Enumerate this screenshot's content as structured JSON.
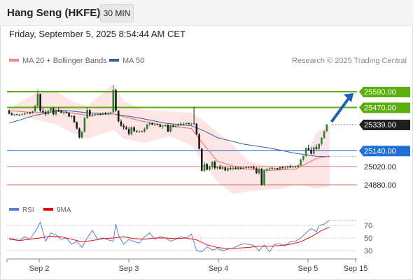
{
  "header": {
    "title": "Hang Seng (HKFE)",
    "timeframe": "30 MIN",
    "datetime": "Friday, September 5, 2025 8:54:44 AM CET"
  },
  "legend": {
    "items": [
      {
        "label": "MA 20 + Bollinger Bands",
        "color": "#f08a8a"
      },
      {
        "label": "MA 50",
        "color": "#2f5f9a"
      }
    ],
    "credit": "Research © 2025 Trading Central"
  },
  "rsi_legend": {
    "items": [
      {
        "label": "RSI",
        "color": "#5b7fd6"
      },
      {
        "label": "9MA",
        "color": "#e01010"
      }
    ]
  },
  "colors": {
    "up": "#2e7d32",
    "down": "#1a1a1a",
    "green_level": "#5cad0e",
    "blue_level": "#1f6fd6",
    "red_level": "#e06a6a",
    "band": "#fde0e0",
    "current": "#1f1f1f",
    "arrow": "#1f5fb4"
  },
  "chart_data": [
    {
      "type": "candlestick",
      "title": "Hang Seng (HKFE)",
      "timeframe": "30 MIN",
      "x_ticks": [
        "Sep 2",
        "Sep 3",
        "Sep 4",
        "Sep 5",
        "Sep 15"
      ],
      "levels": [
        {
          "value": 25590,
          "label": "25590.00",
          "style": "green"
        },
        {
          "value": 25470,
          "label": "25470.00",
          "style": "green"
        },
        {
          "value": 25339,
          "label": "25339.00",
          "style": "current"
        },
        {
          "value": 25140,
          "label": "25140.00",
          "style": "blue"
        },
        {
          "value": 25020,
          "label": "25020.00",
          "style": "red"
        },
        {
          "value": 24880,
          "label": "24880.00",
          "style": "red"
        }
      ],
      "projection": {
        "from": 25339,
        "to": 25590
      },
      "candles": [
        [
          25446,
          25454,
          25416,
          25424
        ],
        [
          25424,
          25432,
          25407,
          25414
        ],
        [
          25414,
          25420,
          25405,
          25417
        ],
        [
          25417,
          25422,
          25410,
          25413
        ],
        [
          25413,
          25421,
          25402,
          25415
        ],
        [
          25415,
          25424,
          25408,
          25418
        ],
        [
          25418,
          25432,
          25411,
          25426
        ],
        [
          25426,
          25436,
          25418,
          25431
        ],
        [
          25431,
          25436,
          25418,
          25430
        ],
        [
          25430,
          25446,
          25423,
          25440
        ],
        [
          25440,
          25490,
          25434,
          25482
        ],
        [
          25482,
          25608,
          25474,
          25573
        ],
        [
          25573,
          25575,
          25434,
          25443
        ],
        [
          25443,
          25463,
          25426,
          25433
        ],
        [
          25433,
          25450,
          25404,
          25419
        ],
        [
          25419,
          25452,
          25412,
          25444
        ],
        [
          25444,
          25470,
          25431,
          25463
        ],
        [
          25463,
          25474,
          25409,
          25418
        ],
        [
          25418,
          25458,
          25406,
          25450
        ],
        [
          25450,
          25467,
          25436,
          25442
        ],
        [
          25442,
          25452,
          25426,
          25429
        ],
        [
          25429,
          25438,
          25414,
          25433
        ],
        [
          25433,
          25442,
          25424,
          25427
        ],
        [
          25427,
          25434,
          25397,
          25401
        ],
        [
          25401,
          25412,
          25387,
          25405
        ],
        [
          25405,
          25411,
          25352,
          25357
        ],
        [
          25357,
          25363,
          25303,
          25309
        ],
        [
          25309,
          25316,
          25234,
          25240
        ],
        [
          25240,
          25291,
          25231,
          25285
        ],
        [
          25285,
          25398,
          25279,
          25390
        ],
        [
          25390,
          25472,
          25382,
          25451
        ],
        [
          25451,
          25455,
          25397,
          25409
        ],
        [
          25409,
          25424,
          25400,
          25411
        ],
        [
          25411,
          25426,
          25406,
          25418
        ],
        [
          25418,
          25427,
          25413,
          25420
        ],
        [
          25420,
          25424,
          25410,
          25417
        ],
        [
          25417,
          25433,
          25412,
          25427
        ],
        [
          25427,
          25435,
          25416,
          25424
        ],
        [
          25424,
          25434,
          25413,
          25427
        ],
        [
          25427,
          25438,
          25420,
          25432
        ],
        [
          25432,
          25640,
          25428,
          25603
        ],
        [
          25603,
          25612,
          25436,
          25446
        ],
        [
          25446,
          25448,
          25357,
          25363
        ],
        [
          25363,
          25379,
          25322,
          25331
        ],
        [
          25331,
          25346,
          25300,
          25318
        ],
        [
          25318,
          25330,
          25298,
          25305
        ],
        [
          25305,
          25319,
          25257,
          25268
        ],
        [
          25268,
          25325,
          25257,
          25319
        ],
        [
          25319,
          25327,
          25282,
          25288
        ],
        [
          25288,
          25298,
          25278,
          25284
        ],
        [
          25284,
          25297,
          25276,
          25287
        ],
        [
          25287,
          25292,
          25282,
          25285
        ],
        [
          25285,
          25317,
          25279,
          25308
        ],
        [
          25308,
          25343,
          25300,
          25340
        ],
        [
          25340,
          25358,
          25329,
          25351
        ],
        [
          25351,
          25355,
          25335,
          25338
        ],
        [
          25338,
          25352,
          25330,
          25341
        ],
        [
          25341,
          25349,
          25333,
          25338
        ],
        [
          25338,
          25346,
          25318,
          25323
        ],
        [
          25323,
          25334,
          25308,
          25328
        ],
        [
          25328,
          25340,
          25324,
          25335
        ],
        [
          25335,
          25345,
          25281,
          25286
        ],
        [
          25286,
          25341,
          25279,
          25333
        ],
        [
          25333,
          25341,
          25318,
          25323
        ],
        [
          25323,
          25339,
          25317,
          25331
        ],
        [
          25331,
          25348,
          25321,
          25343
        ],
        [
          25343,
          25355,
          25330,
          25338
        ],
        [
          25338,
          25355,
          25329,
          25346
        ],
        [
          25346,
          25356,
          25339,
          25351
        ],
        [
          25351,
          25353,
          25339,
          25343
        ],
        [
          25343,
          25354,
          25335,
          25347
        ],
        [
          25347,
          25475,
          25340,
          25345
        ],
        [
          25345,
          25351,
          25260,
          25265
        ],
        [
          25265,
          25275,
          25149,
          25155
        ],
        [
          25155,
          25160,
          24981,
          24987
        ],
        [
          24987,
          25053,
          24977,
          25038
        ],
        [
          25038,
          25045,
          24990,
          24995
        ],
        [
          24995,
          25025,
          24989,
          25019
        ],
        [
          25019,
          25060,
          25001,
          25055
        ],
        [
          25055,
          25066,
          24996,
          25007
        ],
        [
          25007,
          25021,
          24994,
          25015
        ],
        [
          25015,
          25034,
          24997,
          25001
        ],
        [
          25001,
          25024,
          24995,
          25013
        ],
        [
          25013,
          25016,
          24985,
          24990
        ],
        [
          24990,
          25013,
          24981,
          25007
        ],
        [
          25007,
          25020,
          24990,
          25003
        ],
        [
          25003,
          25015,
          24991,
          25010
        ],
        [
          25010,
          25020,
          24996,
          24999
        ],
        [
          24999,
          25021,
          24992,
          25011
        ],
        [
          25011,
          25019,
          24996,
          25002
        ],
        [
          25002,
          25017,
          24997,
          25012
        ],
        [
          25012,
          25019,
          25007,
          25009
        ],
        [
          25009,
          25022,
          25003,
          25017
        ],
        [
          25017,
          25022,
          25005,
          25013
        ],
        [
          25013,
          25027,
          25000,
          25005
        ],
        [
          25005,
          25014,
          24963,
          24969
        ],
        [
          24969,
          25010,
          24958,
          24999
        ],
        [
          24999,
          25010,
          24872,
          24880
        ],
        [
          24880,
          24998,
          24873,
          24990
        ],
        [
          24990,
          25006,
          24979,
          25000
        ],
        [
          25000,
          25013,
          24986,
          25006
        ],
        [
          25006,
          25019,
          25000,
          25004
        ],
        [
          25004,
          25010,
          24995,
          25007
        ],
        [
          25007,
          25010,
          24992,
          24997
        ],
        [
          24997,
          25021,
          24990,
          25016
        ],
        [
          25016,
          25021,
          25002,
          25009
        ],
        [
          25009,
          25025,
          24999,
          25011
        ],
        [
          25011,
          25028,
          25001,
          25022
        ],
        [
          25022,
          25034,
          25008,
          25013
        ],
        [
          25013,
          25027,
          25007,
          25020
        ],
        [
          25020,
          25023,
          25011,
          25016
        ],
        [
          25016,
          25035,
          25011,
          25029
        ],
        [
          25029,
          25079,
          25024,
          25073
        ],
        [
          25073,
          25103,
          25062,
          25099
        ],
        [
          25099,
          25164,
          25091,
          25160
        ],
        [
          25160,
          25185,
          25140,
          25146
        ],
        [
          25146,
          25167,
          25110,
          25118
        ],
        [
          25118,
          25172,
          25112,
          25166
        ],
        [
          25166,
          25188,
          25148,
          25154
        ],
        [
          25154,
          25195,
          25148,
          25192
        ],
        [
          25192,
          25243,
          25180,
          25239
        ],
        [
          25239,
          25293,
          25230,
          25289
        ],
        [
          25289,
          25344,
          25282,
          25339
        ]
      ],
      "ma20": [
        [
          0,
          25446
        ],
        [
          10,
          25430
        ],
        [
          20,
          25440
        ],
        [
          30,
          25410
        ],
        [
          40,
          25420
        ],
        [
          50,
          25370
        ],
        [
          60,
          25330
        ],
        [
          70,
          25310
        ],
        [
          75,
          25180
        ],
        [
          80,
          25060
        ],
        [
          90,
          25000
        ],
        [
          100,
          24990
        ],
        [
          110,
          25000
        ],
        [
          118,
          25080
        ],
        [
          123,
          25100
        ]
      ],
      "ma50": [
        [
          0,
          25350
        ],
        [
          10,
          25410
        ],
        [
          20,
          25450
        ],
        [
          30,
          25430
        ],
        [
          40,
          25420
        ],
        [
          50,
          25390
        ],
        [
          60,
          25350
        ],
        [
          70,
          25330
        ],
        [
          75,
          25290
        ],
        [
          80,
          25240
        ],
        [
          90,
          25190
        ],
        [
          100,
          25160
        ],
        [
          110,
          25120
        ],
        [
          118,
          25098
        ],
        [
          123,
          25095
        ]
      ],
      "bollinger_upper": [
        [
          0,
          25460
        ],
        [
          12,
          25600
        ],
        [
          18,
          25590
        ],
        [
          24,
          25520
        ],
        [
          30,
          25480
        ],
        [
          40,
          25650
        ],
        [
          44,
          25520
        ],
        [
          52,
          25450
        ],
        [
          62,
          25440
        ],
        [
          70,
          25430
        ],
        [
          74,
          25380
        ],
        [
          80,
          25280
        ],
        [
          86,
          25180
        ],
        [
          92,
          25060
        ],
        [
          98,
          25030
        ],
        [
          104,
          25010
        ],
        [
          110,
          25030
        ],
        [
          114,
          25090
        ],
        [
          118,
          25280
        ],
        [
          123,
          25330
        ]
      ],
      "bollinger_lower": [
        [
          0,
          25420
        ],
        [
          12,
          25370
        ],
        [
          18,
          25340
        ],
        [
          24,
          25280
        ],
        [
          30,
          25230
        ],
        [
          40,
          25300
        ],
        [
          44,
          25230
        ],
        [
          52,
          25200
        ],
        [
          62,
          25250
        ],
        [
          70,
          25180
        ],
        [
          74,
          25060
        ],
        [
          80,
          24900
        ],
        [
          86,
          24810
        ],
        [
          92,
          24830
        ],
        [
          98,
          24840
        ],
        [
          104,
          24850
        ],
        [
          110,
          24880
        ],
        [
          114,
          24870
        ],
        [
          118,
          24850
        ],
        [
          123,
          24870
        ]
      ]
    },
    {
      "type": "line",
      "title": "RSI",
      "ylim": [
        20,
        80
      ],
      "y_ticks": [
        30,
        50,
        70
      ],
      "series": [
        {
          "name": "RSI",
          "color": "#5b7fd6",
          "x": [
            0,
            4,
            6,
            8,
            10,
            12,
            14,
            16,
            18,
            20,
            22,
            24,
            26,
            28,
            30,
            32,
            34,
            36,
            38,
            40,
            41,
            42,
            44,
            46,
            48,
            50,
            52,
            54,
            56,
            58,
            60,
            62,
            64,
            66,
            68,
            70,
            72,
            74,
            76,
            78,
            80,
            82,
            84,
            86,
            88,
            90,
            92,
            94,
            96,
            98,
            100,
            102,
            104,
            106,
            108,
            110,
            112,
            114,
            116,
            118,
            119,
            121,
            123
          ],
          "values": [
            50,
            46,
            52,
            48,
            60,
            75,
            45,
            58,
            55,
            48,
            50,
            40,
            45,
            35,
            50,
            62,
            48,
            50,
            47,
            45,
            72,
            55,
            40,
            48,
            44,
            42,
            52,
            58,
            48,
            52,
            50,
            45,
            48,
            52,
            50,
            56,
            30,
            28,
            36,
            31,
            33,
            30,
            32,
            34,
            38,
            41,
            40,
            38,
            30,
            39,
            28,
            40,
            41,
            37,
            44,
            45,
            50,
            58,
            65,
            60,
            70,
            72,
            78
          ]
        },
        {
          "name": "9MA",
          "color": "#e01010",
          "x": [
            0,
            4,
            8,
            12,
            16,
            20,
            24,
            28,
            32,
            36,
            40,
            44,
            48,
            52,
            56,
            60,
            64,
            68,
            72,
            76,
            80,
            84,
            88,
            92,
            96,
            100,
            104,
            108,
            112,
            116,
            120,
            123
          ],
          "values": [
            48,
            46,
            48,
            50,
            53,
            52,
            48,
            44,
            46,
            49,
            50,
            52,
            49,
            48,
            50,
            50,
            49,
            50,
            47,
            39,
            35,
            33,
            34,
            35,
            37,
            37,
            38,
            40,
            44,
            52,
            62,
            67
          ]
        }
      ]
    }
  ]
}
